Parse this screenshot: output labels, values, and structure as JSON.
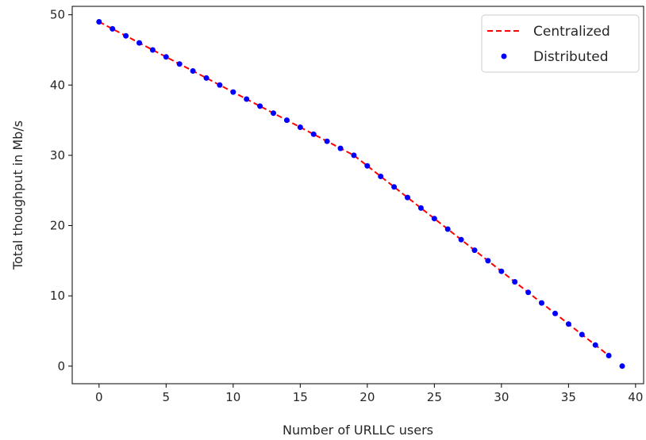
{
  "chart_data": {
    "type": "line",
    "xlabel": "Number of URLLC users",
    "ylabel": "Total thoughput in Mb/s",
    "xlim": [
      -2,
      40.6
    ],
    "ylim": [
      -2.5,
      51.2
    ],
    "xticks": [
      0,
      5,
      10,
      15,
      20,
      25,
      30,
      35,
      40
    ],
    "yticks": [
      0,
      10,
      20,
      30,
      40,
      50
    ],
    "grid": false,
    "legend_position": "top-right",
    "series": [
      {
        "name": "Centralized",
        "style": "dashed-line",
        "color": "#ff0000",
        "x": [
          0,
          1,
          2,
          3,
          4,
          5,
          6,
          7,
          8,
          9,
          10,
          11,
          12,
          13,
          14,
          15,
          16,
          17,
          18,
          19,
          20,
          21,
          22,
          23,
          24,
          25,
          26,
          27,
          28,
          29,
          30,
          31,
          32,
          33,
          34,
          35,
          36,
          37,
          38
        ],
        "y": [
          49,
          48,
          47,
          46,
          45,
          44,
          43,
          42,
          41,
          40,
          39,
          38,
          37,
          36,
          35,
          34,
          33,
          32,
          31,
          30,
          28.5,
          27,
          25.5,
          24,
          22.5,
          21,
          19.5,
          18,
          16.5,
          15,
          13.5,
          12,
          10.5,
          9,
          7.5,
          6,
          4.5,
          3,
          1.5
        ]
      },
      {
        "name": "Distributed",
        "style": "markers",
        "color": "#0000ff",
        "x": [
          0,
          1,
          2,
          3,
          4,
          5,
          6,
          7,
          8,
          9,
          10,
          11,
          12,
          13,
          14,
          15,
          16,
          17,
          18,
          19,
          20,
          21,
          22,
          23,
          24,
          25,
          26,
          27,
          28,
          29,
          30,
          31,
          32,
          33,
          34,
          35,
          36,
          37,
          38,
          39
        ],
        "y": [
          49,
          48,
          47,
          46,
          45,
          44,
          43,
          42,
          41,
          40,
          39,
          38,
          37,
          36,
          35,
          34,
          33,
          32,
          31,
          30,
          28.5,
          27,
          25.5,
          24,
          22.5,
          21,
          19.5,
          18,
          16.5,
          15,
          13.5,
          12,
          10.5,
          9,
          7.5,
          6,
          4.5,
          3,
          1.5,
          0
        ]
      }
    ]
  }
}
